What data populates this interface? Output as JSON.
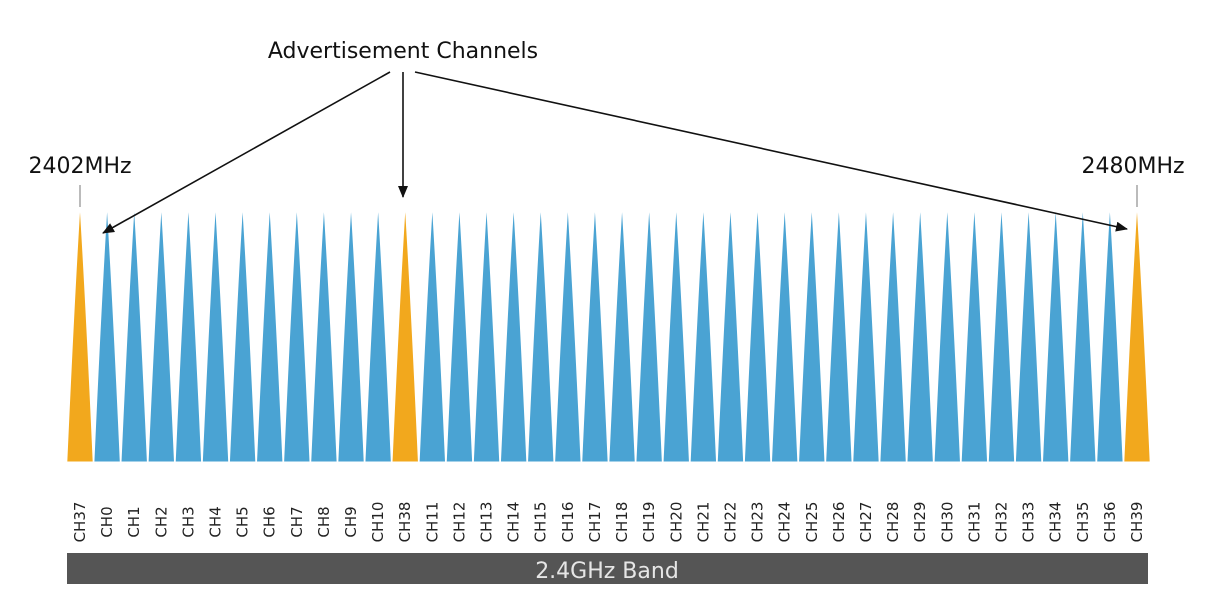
{
  "annotation": {
    "title": "Advertisement Channels",
    "freq_start": "2402MHz",
    "freq_end": "2480MHz"
  },
  "band": {
    "label": "2.4GHz Band"
  },
  "channels": [
    {
      "label": "CH37",
      "type": "advertising"
    },
    {
      "label": "CH0",
      "type": "data"
    },
    {
      "label": "CH1",
      "type": "data"
    },
    {
      "label": "CH2",
      "type": "data"
    },
    {
      "label": "CH3",
      "type": "data"
    },
    {
      "label": "CH4",
      "type": "data"
    },
    {
      "label": "CH5",
      "type": "data"
    },
    {
      "label": "CH6",
      "type": "data"
    },
    {
      "label": "CH7",
      "type": "data"
    },
    {
      "label": "CH8",
      "type": "data"
    },
    {
      "label": "CH9",
      "type": "data"
    },
    {
      "label": "CH10",
      "type": "data"
    },
    {
      "label": "CH38",
      "type": "advertising"
    },
    {
      "label": "CH11",
      "type": "data"
    },
    {
      "label": "CH12",
      "type": "data"
    },
    {
      "label": "CH13",
      "type": "data"
    },
    {
      "label": "CH14",
      "type": "data"
    },
    {
      "label": "CH15",
      "type": "data"
    },
    {
      "label": "CH16",
      "type": "data"
    },
    {
      "label": "CH17",
      "type": "data"
    },
    {
      "label": "CH18",
      "type": "data"
    },
    {
      "label": "CH19",
      "type": "data"
    },
    {
      "label": "CH20",
      "type": "data"
    },
    {
      "label": "CH21",
      "type": "data"
    },
    {
      "label": "CH22",
      "type": "data"
    },
    {
      "label": "CH23",
      "type": "data"
    },
    {
      "label": "CH24",
      "type": "data"
    },
    {
      "label": "CH25",
      "type": "data"
    },
    {
      "label": "CH26",
      "type": "data"
    },
    {
      "label": "CH27",
      "type": "data"
    },
    {
      "label": "CH28",
      "type": "data"
    },
    {
      "label": "CH29",
      "type": "data"
    },
    {
      "label": "CH30",
      "type": "data"
    },
    {
      "label": "CH31",
      "type": "data"
    },
    {
      "label": "CH32",
      "type": "data"
    },
    {
      "label": "CH33",
      "type": "data"
    },
    {
      "label": "CH34",
      "type": "data"
    },
    {
      "label": "CH35",
      "type": "data"
    },
    {
      "label": "CH36",
      "type": "data"
    },
    {
      "label": "CH39",
      "type": "advertising"
    }
  ],
  "colors": {
    "data_channel": "#4aa3d3",
    "advertising_channel": "#f2a81d",
    "band_bar": "#555555",
    "band_text": "#e6e6e6",
    "arrow": "#111111"
  }
}
